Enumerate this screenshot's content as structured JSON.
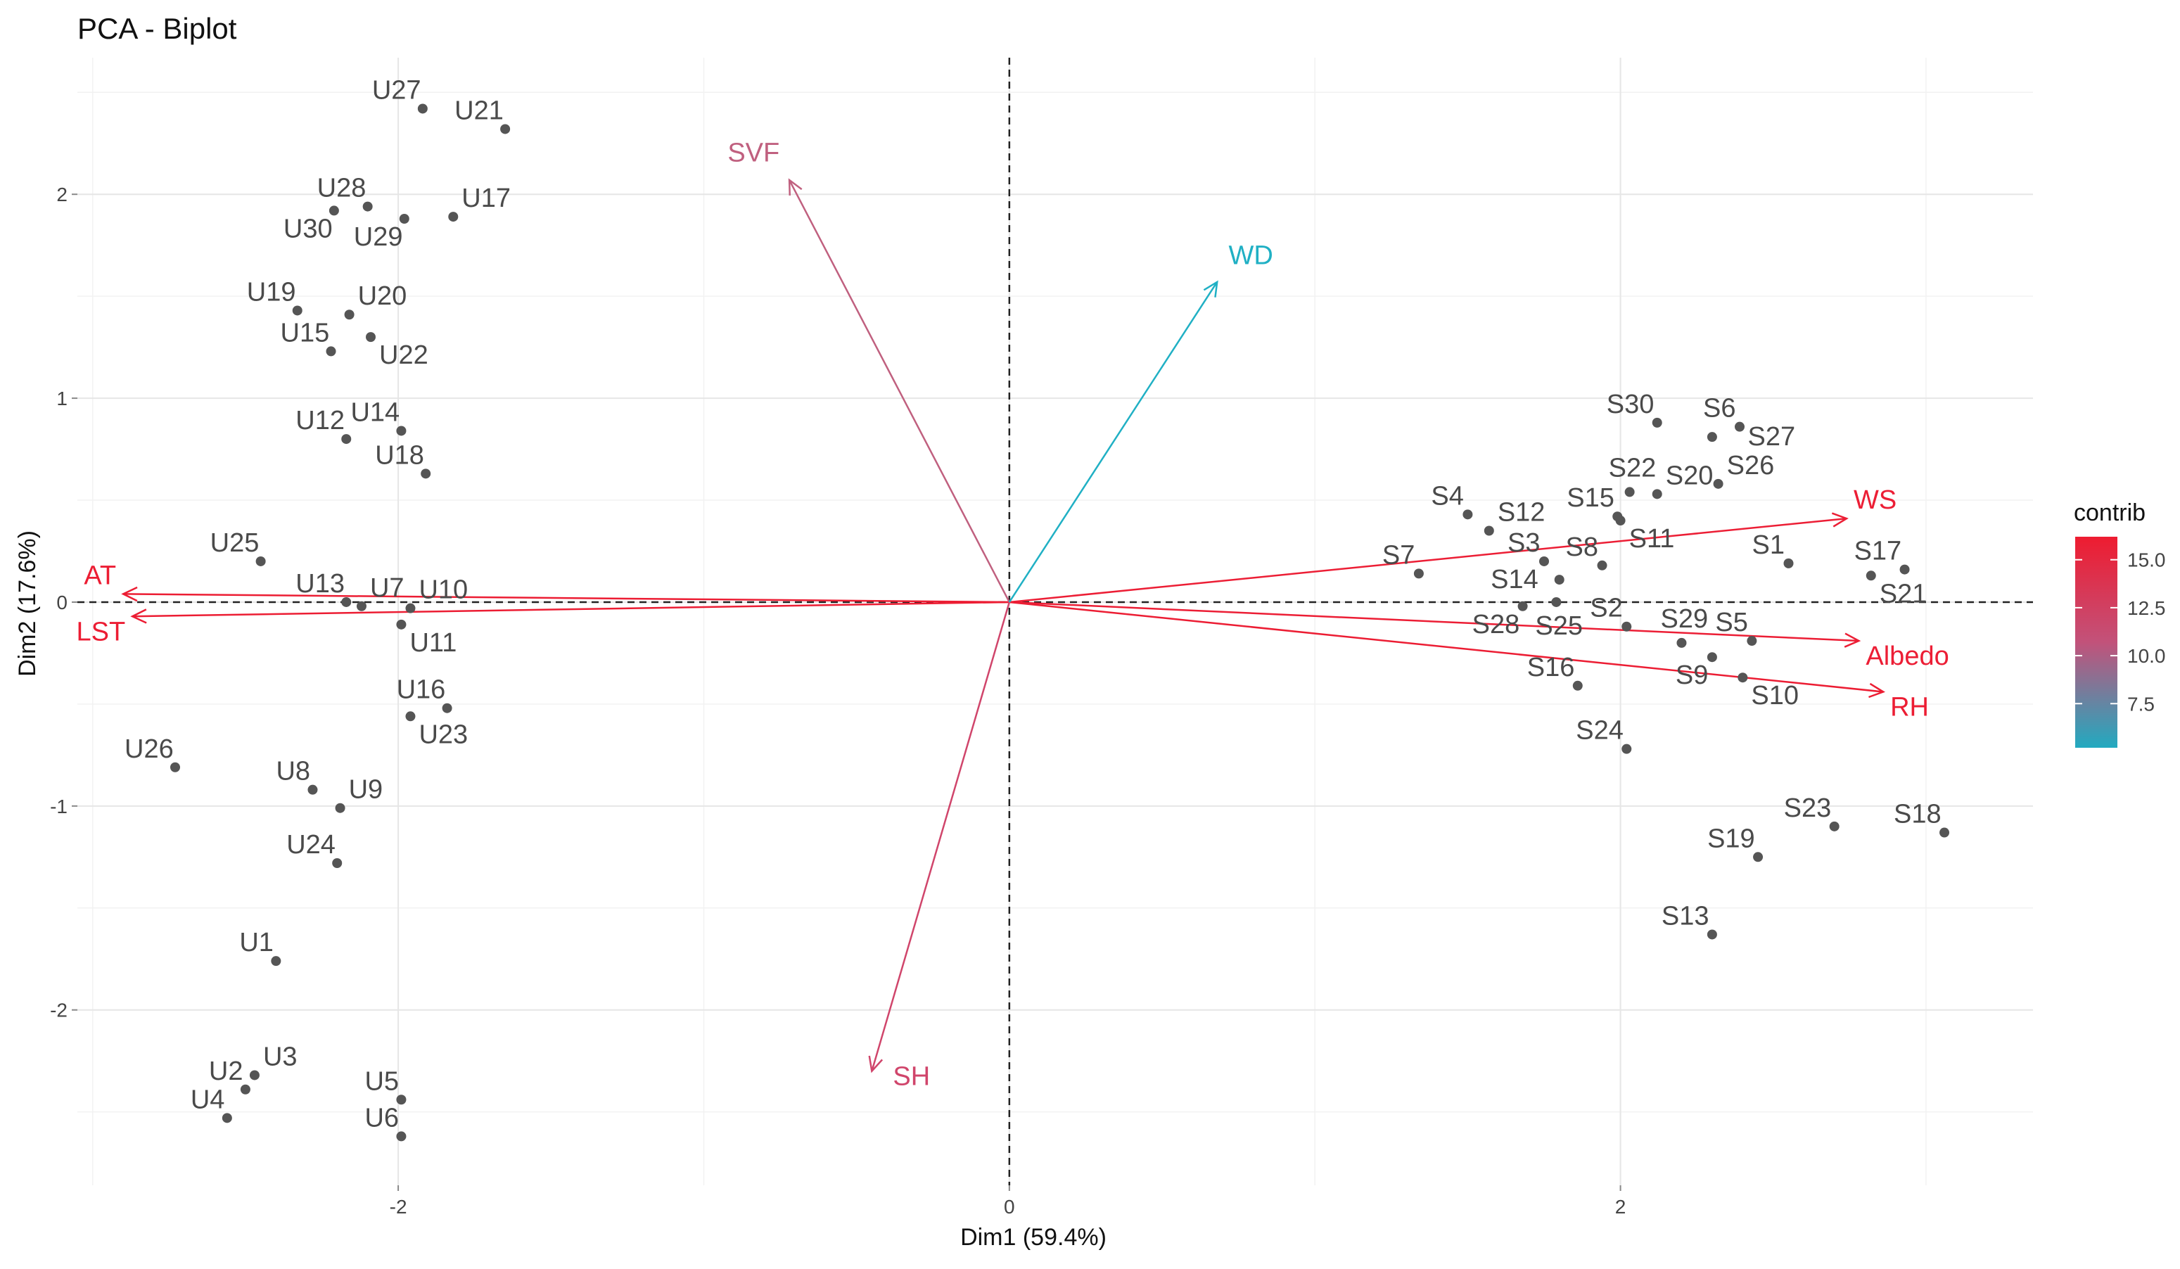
{
  "chart_data": {
    "type": "scatter",
    "title": "PCA - Biplot",
    "xlabel": "Dim1 (59.4%)",
    "ylabel": "Dim2 (17.6%)",
    "xlim": [
      -3.05,
      3.35
    ],
    "ylim": [
      -2.86,
      2.67
    ],
    "xticks": [
      -2,
      0,
      2
    ],
    "xtick_labels": [
      "-2",
      "0",
      "2"
    ],
    "yticks": [
      -2,
      -1,
      0,
      1,
      2
    ],
    "ytick_labels": [
      "-2",
      "-1",
      "0",
      "1",
      "2"
    ],
    "grid": true,
    "legend_position": "right",
    "legend": {
      "title": "contrib",
      "ticks": [
        7.5,
        10.0,
        12.5,
        15.0
      ],
      "tick_labels": [
        "7.5",
        "10.0",
        "12.5",
        "15.0"
      ],
      "min": 5.2,
      "max": 16.2,
      "color_low": "#22aac0",
      "color_mid": "#c2527a",
      "color_high": "#ee1c30"
    },
    "point_color": "#555555",
    "points": [
      {
        "label": "U1",
        "x": -2.4,
        "y": -1.76
      },
      {
        "label": "U2",
        "x": -2.5,
        "y": -2.39
      },
      {
        "label": "U3",
        "x": -2.47,
        "y": -2.32
      },
      {
        "label": "U4",
        "x": -2.56,
        "y": -2.53
      },
      {
        "label": "U5",
        "x": -1.99,
        "y": -2.44
      },
      {
        "label": "U6",
        "x": -1.99,
        "y": -2.62
      },
      {
        "label": "U7",
        "x": -2.12,
        "y": -0.02
      },
      {
        "label": "U8",
        "x": -2.28,
        "y": -0.92
      },
      {
        "label": "U9",
        "x": -2.19,
        "y": -1.01
      },
      {
        "label": "U10",
        "x": -1.96,
        "y": -0.03
      },
      {
        "label": "U11",
        "x": -1.99,
        "y": -0.11
      },
      {
        "label": "U12",
        "x": -2.17,
        "y": 0.8
      },
      {
        "label": "U13",
        "x": -2.17,
        "y": 0.0
      },
      {
        "label": "U14",
        "x": -1.99,
        "y": 0.84
      },
      {
        "label": "U15",
        "x": -2.22,
        "y": 1.23
      },
      {
        "label": "U16",
        "x": -1.84,
        "y": -0.52
      },
      {
        "label": "U17",
        "x": -1.82,
        "y": 1.89
      },
      {
        "label": "U18",
        "x": -1.91,
        "y": 0.63
      },
      {
        "label": "U19",
        "x": -2.33,
        "y": 1.43
      },
      {
        "label": "U20",
        "x": -2.16,
        "y": 1.41
      },
      {
        "label": "U21",
        "x": -1.65,
        "y": 2.32
      },
      {
        "label": "U22",
        "x": -2.09,
        "y": 1.3
      },
      {
        "label": "U23",
        "x": -1.96,
        "y": -0.56
      },
      {
        "label": "U24",
        "x": -2.2,
        "y": -1.28
      },
      {
        "label": "U25",
        "x": -2.45,
        "y": 0.2
      },
      {
        "label": "U26",
        "x": -2.73,
        "y": -0.81
      },
      {
        "label": "U27",
        "x": -1.92,
        "y": 2.42
      },
      {
        "label": "U28",
        "x": -2.1,
        "y": 1.94
      },
      {
        "label": "U29",
        "x": -1.98,
        "y": 1.88
      },
      {
        "label": "U30",
        "x": -2.21,
        "y": 1.92
      },
      {
        "label": "S1",
        "x": 2.55,
        "y": 0.19
      },
      {
        "label": "S2",
        "x": 2.02,
        "y": -0.12
      },
      {
        "label": "S3",
        "x": 1.75,
        "y": 0.2
      },
      {
        "label": "S4",
        "x": 1.5,
        "y": 0.43
      },
      {
        "label": "S5",
        "x": 2.43,
        "y": -0.19
      },
      {
        "label": "S6",
        "x": 2.39,
        "y": 0.86
      },
      {
        "label": "S7",
        "x": 1.34,
        "y": 0.14
      },
      {
        "label": "S8",
        "x": 1.94,
        "y": 0.18
      },
      {
        "label": "S9",
        "x": 2.3,
        "y": -0.27
      },
      {
        "label": "S10",
        "x": 2.4,
        "y": -0.37
      },
      {
        "label": "S11",
        "x": 2.0,
        "y": 0.4
      },
      {
        "label": "S12",
        "x": 1.57,
        "y": 0.35
      },
      {
        "label": "S13",
        "x": 2.3,
        "y": -1.63
      },
      {
        "label": "S14",
        "x": 1.8,
        "y": 0.11
      },
      {
        "label": "S15",
        "x": 1.99,
        "y": 0.42
      },
      {
        "label": "S16",
        "x": 1.86,
        "y": -0.41
      },
      {
        "label": "S17",
        "x": 2.93,
        "y": 0.16
      },
      {
        "label": "S18",
        "x": 3.06,
        "y": -1.13
      },
      {
        "label": "S19",
        "x": 2.45,
        "y": -1.25
      },
      {
        "label": "S20",
        "x": 2.12,
        "y": 0.53
      },
      {
        "label": "S21",
        "x": 2.82,
        "y": 0.13
      },
      {
        "label": "S22",
        "x": 2.03,
        "y": 0.54
      },
      {
        "label": "S23",
        "x": 2.7,
        "y": -1.1
      },
      {
        "label": "S24",
        "x": 2.02,
        "y": -0.72
      },
      {
        "label": "S25",
        "x": 1.79,
        "y": 0.0
      },
      {
        "label": "S26",
        "x": 2.32,
        "y": 0.58
      },
      {
        "label": "S27",
        "x": 2.3,
        "y": 0.81
      },
      {
        "label": "S28",
        "x": 1.68,
        "y": -0.02
      },
      {
        "label": "S29",
        "x": 2.2,
        "y": -0.2
      },
      {
        "label": "S30",
        "x": 2.12,
        "y": 0.88
      }
    ],
    "variables": [
      {
        "label": "AT",
        "x": -2.9,
        "y": 0.04,
        "contrib": 15.8,
        "color": "#ec1d33"
      },
      {
        "label": "LST",
        "x": -2.87,
        "y": -0.07,
        "contrib": 15.6,
        "color": "#ec1d33"
      },
      {
        "label": "WS",
        "x": 2.74,
        "y": 0.41,
        "contrib": 15.2,
        "color": "#ec1e35"
      },
      {
        "label": "Albedo",
        "x": 2.78,
        "y": -0.19,
        "contrib": 15.2,
        "color": "#ec1e35"
      },
      {
        "label": "RH",
        "x": 2.86,
        "y": -0.44,
        "contrib": 15.6,
        "color": "#ec1d33"
      },
      {
        "label": "SVF",
        "x": -0.72,
        "y": 2.07,
        "contrib": 9.4,
        "color": "#c0607f"
      },
      {
        "label": "WD",
        "x": 0.68,
        "y": 1.57,
        "contrib": 5.5,
        "color": "#20b0c4"
      },
      {
        "label": "SH",
        "x": -0.45,
        "y": -2.3,
        "contrib": 11.2,
        "color": "#d0456b"
      }
    ]
  }
}
